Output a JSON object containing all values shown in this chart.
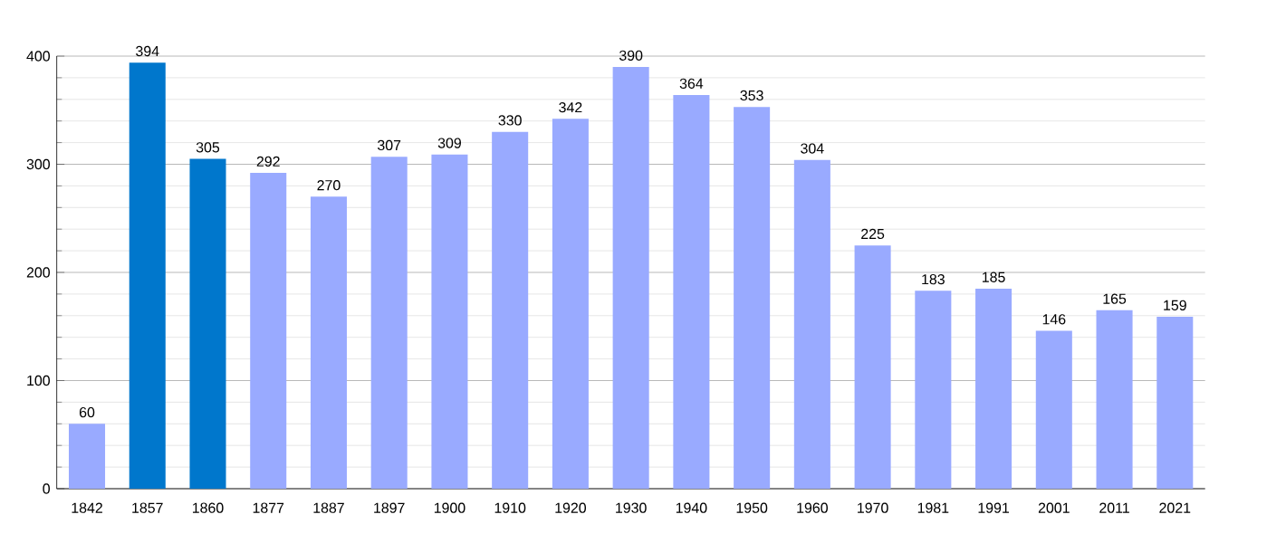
{
  "chart_data": {
    "type": "bar",
    "categories": [
      "1842",
      "1857",
      "1860",
      "1877",
      "1887",
      "1897",
      "1900",
      "1910",
      "1920",
      "1930",
      "1940",
      "1950",
      "1960",
      "1970",
      "1981",
      "1991",
      "2001",
      "2011",
      "2021"
    ],
    "values": [
      60,
      394,
      305,
      292,
      270,
      307,
      309,
      330,
      342,
      390,
      364,
      353,
      304,
      225,
      183,
      185,
      146,
      165,
      159
    ],
    "colors": [
      "#99aaff",
      "#0077cc",
      "#0077cc",
      "#99aaff",
      "#99aaff",
      "#99aaff",
      "#99aaff",
      "#99aaff",
      "#99aaff",
      "#99aaff",
      "#99aaff",
      "#99aaff",
      "#99aaff",
      "#99aaff",
      "#99aaff",
      "#99aaff",
      "#99aaff",
      "#99aaff",
      "#99aaff"
    ],
    "ylim": [
      0,
      400
    ],
    "yticks": [
      0,
      100,
      200,
      300,
      400
    ],
    "grid": "y",
    "data_labels": true
  }
}
